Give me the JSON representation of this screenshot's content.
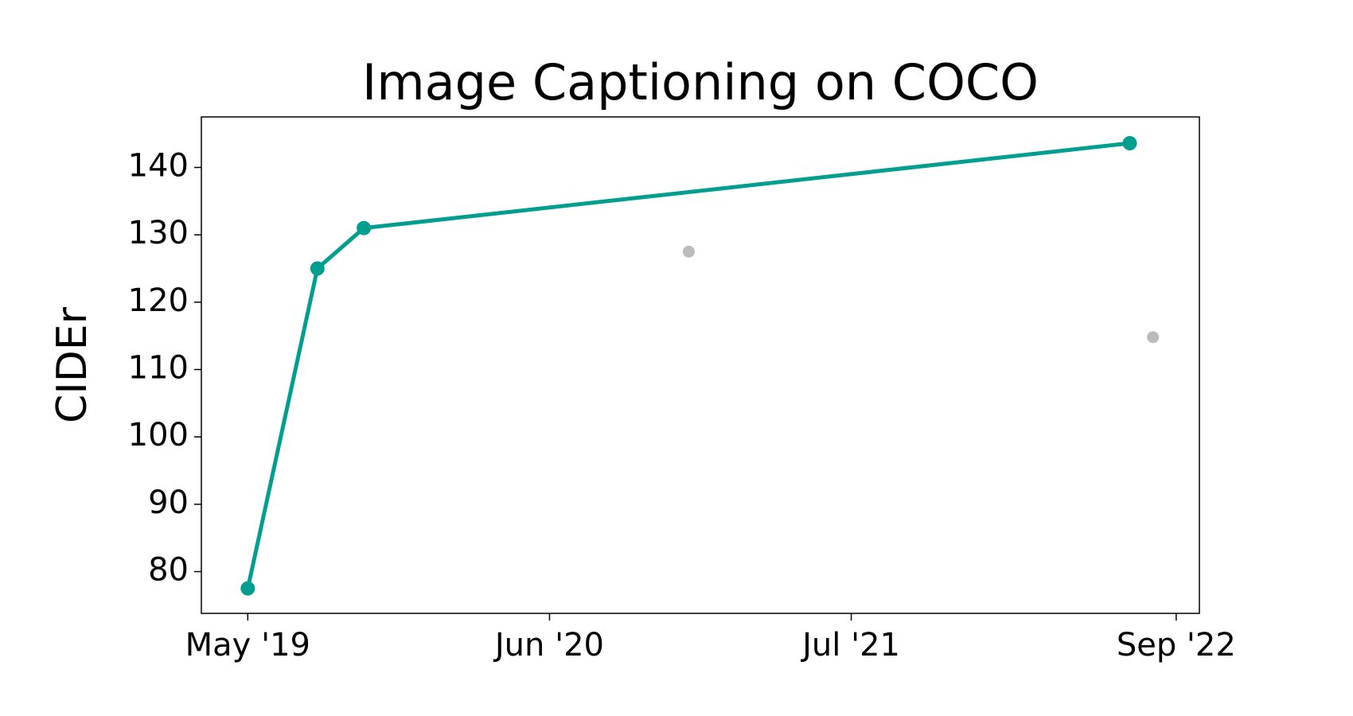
{
  "chart_data": {
    "type": "line",
    "title": "Image Captioning on COCO",
    "y_label": "CIDEr",
    "xlim": [
      "2019-03",
      "2022-10"
    ],
    "xticks": [
      {
        "value": "2019-05",
        "label": "May '19"
      },
      {
        "value": "2020-06",
        "label": "Jun '20"
      },
      {
        "value": "2021-07",
        "label": "Jul '21"
      },
      {
        "value": "2022-09",
        "label": "Sep '22"
      }
    ],
    "ylim": [
      73.8,
      147.5
    ],
    "yticks": [
      80,
      90,
      100,
      110,
      120,
      130,
      140
    ],
    "grid": false,
    "series": [
      {
        "color": "#009e8e",
        "line": true,
        "x": [
          "2019-05",
          "2019-08",
          "2019-10",
          "2022-07"
        ],
        "values": [
          77.5,
          125,
          131,
          143.6
        ]
      },
      {
        "color": "#bbbbbb",
        "line": false,
        "x": [
          "2020-12",
          "2022-08"
        ],
        "values": [
          127.5,
          114.8
        ]
      }
    ]
  }
}
